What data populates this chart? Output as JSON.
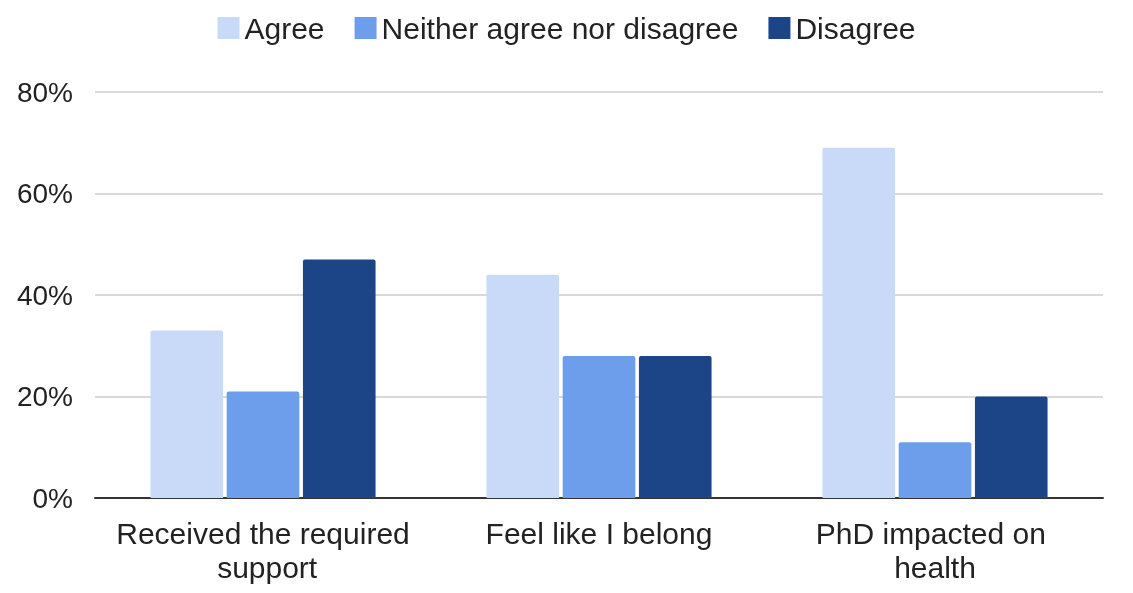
{
  "chart_data": {
    "type": "bar",
    "categories": [
      "Received the required support",
      "Feel like I belong",
      "PhD impacted on health"
    ],
    "series": [
      {
        "name": "Agree",
        "color": "#c9daf8",
        "values": [
          33,
          44,
          69
        ]
      },
      {
        "name": "Neither agree nor disagree",
        "color": "#6d9eeb",
        "values": [
          21,
          28,
          11
        ]
      },
      {
        "name": "Disagree",
        "color": "#1c4587",
        "values": [
          47,
          28,
          20
        ]
      }
    ],
    "ylim": [
      0,
      80
    ],
    "yticks": [
      {
        "value": 0,
        "label": "0%"
      },
      {
        "value": 20,
        "label": "20%"
      },
      {
        "value": 40,
        "label": "40%"
      },
      {
        "value": 60,
        "label": "60%"
      },
      {
        "value": 80,
        "label": "80%"
      }
    ],
    "grid": "y",
    "legend": "top"
  }
}
